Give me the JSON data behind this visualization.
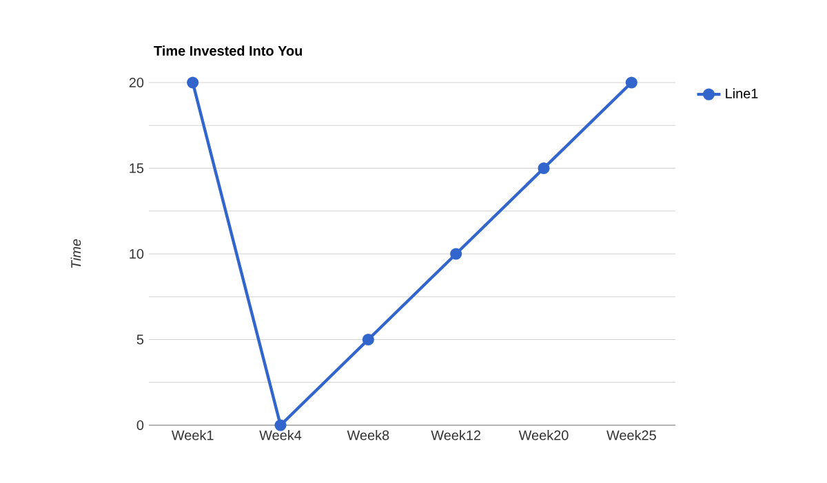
{
  "chart_data": {
    "type": "line",
    "title": "Time Invested Into You",
    "ylabel": "Time",
    "categories": [
      "Week1",
      "Week4",
      "Week8",
      "Week12",
      "Week20",
      "Week25"
    ],
    "series": [
      {
        "name": "Line1",
        "color": "#3366cc",
        "values": [
          20,
          0,
          5,
          10,
          15,
          20
        ]
      }
    ],
    "ylim": [
      0,
      20
    ],
    "yticks": [
      0,
      {
        "value": 2.5,
        "label": null
      },
      5,
      {
        "value": 7.5,
        "label": null
      },
      10,
      {
        "value": 12.5,
        "label": null
      },
      15,
      {
        "value": 17.5,
        "label": null
      },
      20
    ],
    "grid": "y",
    "legend": "top right",
    "marker": "circle",
    "line_style": "solid"
  }
}
